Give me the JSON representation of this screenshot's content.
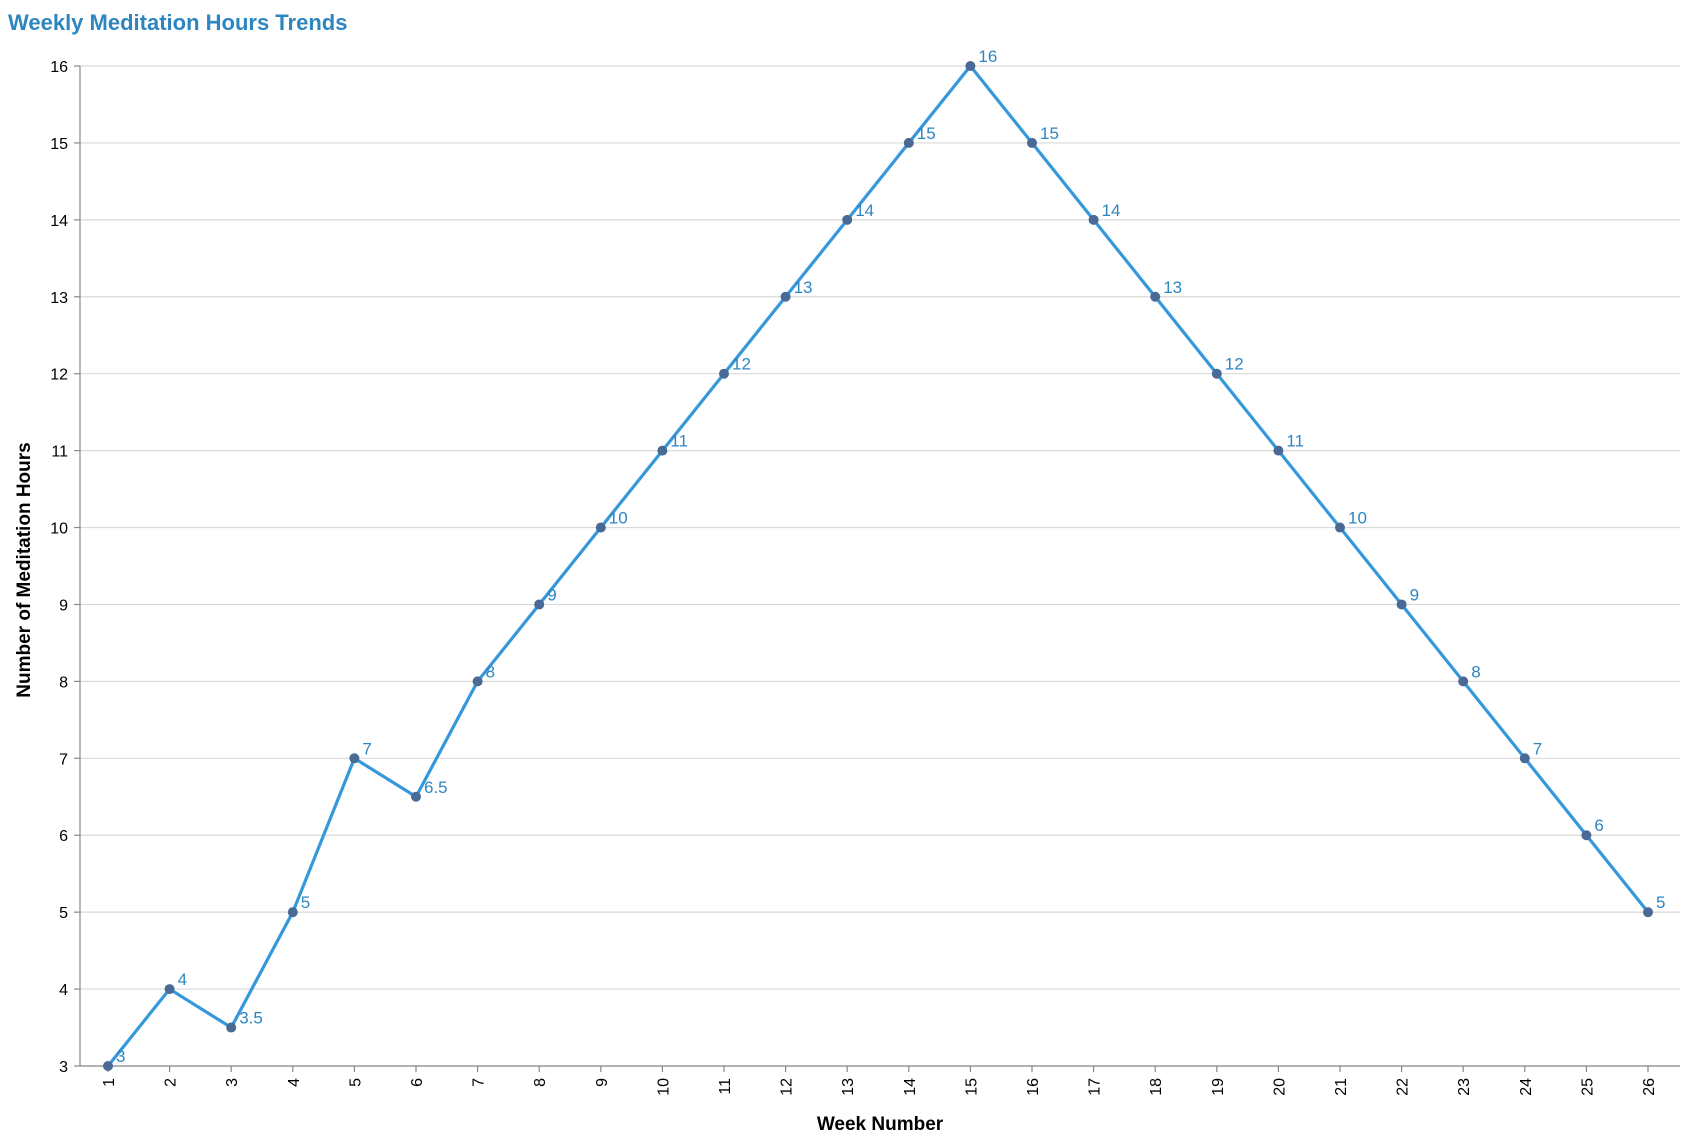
{
  "chart_data": {
    "type": "line",
    "title": "Weekly Meditation Hours Trends",
    "xlabel": "Week Number",
    "ylabel": "Number of Meditation Hours",
    "x": [
      1,
      2,
      3,
      4,
      5,
      6,
      7,
      8,
      9,
      10,
      11,
      12,
      13,
      14,
      15,
      16,
      17,
      18,
      19,
      20,
      21,
      22,
      23,
      24,
      25,
      26
    ],
    "series": [
      {
        "values": [
          3,
          4,
          3.5,
          5,
          7,
          6.5,
          8,
          9,
          10,
          11,
          12,
          13,
          14,
          15,
          16,
          15,
          14,
          13,
          12,
          11,
          10,
          9,
          8,
          7,
          6,
          5
        ]
      }
    ],
    "data_labels": [
      "3",
      "4",
      "3.5",
      "5",
      "7",
      "6.5",
      "8",
      "9",
      "10",
      "11",
      "12",
      "13",
      "14",
      "15",
      "16",
      "15",
      "14",
      "13",
      "12",
      "11",
      "10",
      "9",
      "8",
      "7",
      "6",
      "5"
    ],
    "ylim": [
      3,
      16
    ],
    "y_ticks": [
      3,
      4,
      5,
      6,
      7,
      8,
      9,
      10,
      11,
      12,
      13,
      14,
      15,
      16
    ],
    "grid": true,
    "colors": {
      "title": "#2e86c1",
      "line": "#3498db",
      "point": "#4a6a96",
      "label": "#2e86c1"
    }
  }
}
